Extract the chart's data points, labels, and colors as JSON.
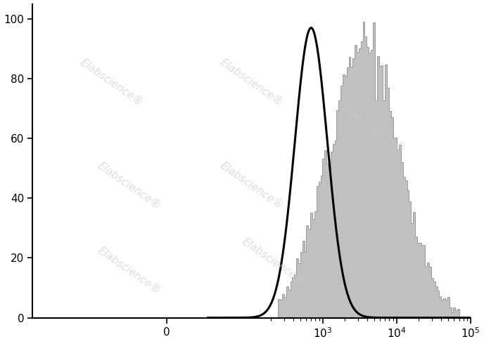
{
  "ylim": [
    0,
    105
  ],
  "yticks": [
    0,
    20,
    40,
    60,
    80,
    100
  ],
  "background_color": "#ffffff",
  "watermark_text": "Elabscience",
  "watermark_color": "#c8c8c8",
  "isotype_color": "#000000",
  "isotype_linewidth": 2.2,
  "cd49d_facecolor": "#c0c0c0",
  "cd49d_edgecolor": "#909090",
  "isotype_peak_x": 700,
  "isotype_peak_y": 97,
  "isotype_sigma_log": 0.22,
  "cd49d_peak_x": 3500,
  "cd49d_peak_y": 93,
  "cd49d_sigma_log": 0.48,
  "cd49d_hist_bins": 90,
  "cd49d_hist_start": 2.4,
  "cd49d_hist_end": 4.85,
  "linthresh": 100,
  "xlim_low": -500,
  "xlim_high": 100000
}
